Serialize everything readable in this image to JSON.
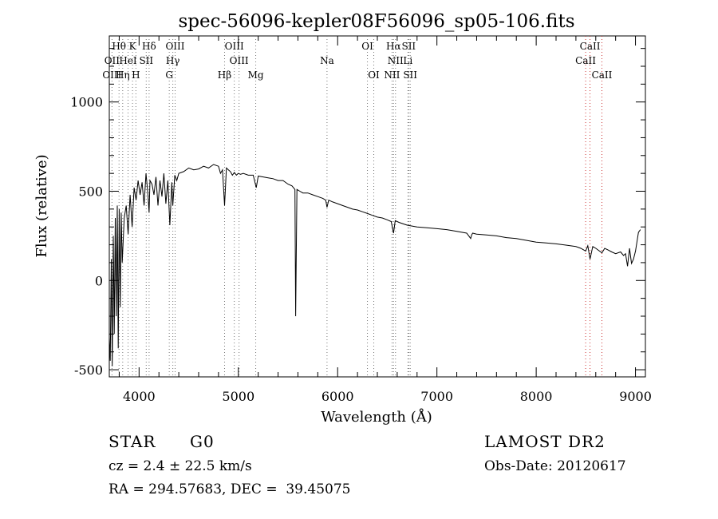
{
  "chart_data": {
    "type": "line",
    "title": "spec-56096-kepler08F56096_sp05-106.fits",
    "xlabel": "Wavelength (Å)",
    "ylabel": "Flux (relative)",
    "xlim": [
      3700,
      9100
    ],
    "ylim": [
      -540,
      1370
    ],
    "x_ticks": [
      4000,
      5000,
      6000,
      7000,
      8000,
      9000
    ],
    "y_ticks": [
      -500,
      0,
      500,
      1000
    ],
    "grid": false,
    "series": [
      {
        "name": "flux",
        "x": [
          3700,
          3710,
          3720,
          3730,
          3740,
          3750,
          3760,
          3770,
          3780,
          3790,
          3800,
          3810,
          3820,
          3830,
          3850,
          3870,
          3890,
          3910,
          3930,
          3950,
          3970,
          3990,
          4010,
          4030,
          4050,
          4070,
          4090,
          4101,
          4110,
          4130,
          4150,
          4170,
          4190,
          4210,
          4230,
          4250,
          4270,
          4290,
          4310,
          4330,
          4340,
          4360,
          4380,
          4400,
          4450,
          4500,
          4550,
          4600,
          4650,
          4700,
          4750,
          4800,
          4820,
          4840,
          4861,
          4880,
          4900,
          4920,
          4940,
          4960,
          4980,
          5000,
          5020,
          5050,
          5100,
          5150,
          5180,
          5200,
          5250,
          5300,
          5350,
          5400,
          5450,
          5500,
          5540,
          5570,
          5577,
          5590,
          5620,
          5650,
          5700,
          5750,
          5800,
          5850,
          5880,
          5893,
          5910,
          5950,
          6000,
          6050,
          6100,
          6150,
          6200,
          6250,
          6300,
          6350,
          6400,
          6450,
          6500,
          6540,
          6563,
          6580,
          6620,
          6700,
          6800,
          6900,
          7000,
          7100,
          7200,
          7300,
          7340,
          7350,
          7360,
          7400,
          7500,
          7600,
          7700,
          7800,
          7900,
          8000,
          8100,
          8200,
          8300,
          8400,
          8450,
          8498,
          8520,
          8542,
          8570,
          8600,
          8662,
          8690,
          8720,
          8760,
          8800,
          8850,
          8880,
          8900,
          8920,
          8940,
          8960,
          8980,
          9000,
          9030,
          9050
        ],
        "values": [
          -320,
          -450,
          120,
          -480,
          250,
          -300,
          350,
          -200,
          420,
          -380,
          400,
          -150,
          380,
          100,
          350,
          420,
          260,
          480,
          300,
          520,
          450,
          560,
          480,
          550,
          420,
          600,
          480,
          380,
          560,
          540,
          480,
          580,
          420,
          560,
          470,
          600,
          430,
          560,
          310,
          550,
          420,
          590,
          560,
          600,
          610,
          630,
          620,
          625,
          640,
          630,
          650,
          640,
          600,
          620,
          420,
          630,
          620,
          610,
          590,
          605,
          590,
          600,
          595,
          600,
          590,
          590,
          520,
          585,
          580,
          575,
          570,
          560,
          560,
          540,
          530,
          510,
          -200,
          510,
          500,
          490,
          490,
          480,
          470,
          460,
          450,
          410,
          450,
          440,
          430,
          420,
          410,
          400,
          395,
          385,
          375,
          365,
          355,
          350,
          340,
          330,
          265,
          335,
          325,
          310,
          300,
          295,
          290,
          285,
          275,
          265,
          235,
          255,
          265,
          260,
          255,
          250,
          240,
          235,
          225,
          215,
          210,
          205,
          198,
          190,
          180,
          165,
          195,
          120,
          190,
          180,
          155,
          180,
          172,
          160,
          150,
          160,
          140,
          150,
          80,
          180,
          95,
          120,
          165,
          270,
          285
        ]
      }
    ],
    "annotations": [
      {
        "label": "Hθ",
        "x": 3798,
        "row": 0
      },
      {
        "label": "K",
        "x": 3934,
        "row": 0
      },
      {
        "label": "Hδ",
        "x": 4101,
        "row": 0
      },
      {
        "label": "OIII",
        "x": 4363,
        "row": 0
      },
      {
        "label": "OIII",
        "x": 4959,
        "row": 0
      },
      {
        "label": "OI",
        "x": 6300,
        "row": 0
      },
      {
        "label": "Hα",
        "x": 6563,
        "row": 0
      },
      {
        "label": "SII",
        "x": 6716,
        "row": 0
      },
      {
        "label": "CaII",
        "x": 8542,
        "row": 0
      },
      {
        "label": "OII",
        "x": 3727,
        "row": 1
      },
      {
        "label": "HeI",
        "x": 3889,
        "row": 1
      },
      {
        "label": "SII",
        "x": 4072,
        "row": 1
      },
      {
        "label": "Hγ",
        "x": 4340,
        "row": 1
      },
      {
        "label": "OIII",
        "x": 5007,
        "row": 1
      },
      {
        "label": "Na",
        "x": 5893,
        "row": 1
      },
      {
        "label": "NII",
        "x": 6583,
        "row": 1
      },
      {
        "label": "Li",
        "x": 6708,
        "row": 1
      },
      {
        "label": "CaII",
        "x": 8498,
        "row": 1
      },
      {
        "label": "OIII",
        "x": 3727,
        "row": 2
      },
      {
        "label": "Hη",
        "x": 3835,
        "row": 2
      },
      {
        "label": "H",
        "x": 3968,
        "row": 2
      },
      {
        "label": "G",
        "x": 4304,
        "row": 2
      },
      {
        "label": "Hβ",
        "x": 4861,
        "row": 2
      },
      {
        "label": "Mg",
        "x": 5175,
        "row": 2
      },
      {
        "label": "OI",
        "x": 6364,
        "row": 2
      },
      {
        "label": "NII",
        "x": 6548,
        "row": 2
      },
      {
        "label": "SII",
        "x": 6731,
        "row": 2
      },
      {
        "label": "CaII",
        "x": 8662,
        "row": 2
      }
    ],
    "line_markers": [
      3727,
      3798,
      3835,
      3889,
      3934,
      3968,
      4072,
      4101,
      4304,
      4340,
      4363,
      4861,
      4959,
      5007,
      5175,
      5893,
      6300,
      6364,
      6548,
      6563,
      6583,
      6708,
      6716,
      6731,
      8498,
      8542,
      8662
    ],
    "marker_colors": {
      "dotted_line": "#777777",
      "red_dotted_line": "#cc3333"
    }
  },
  "info": {
    "class_label": "STAR",
    "subclass": "G0",
    "survey": "LAMOST DR2",
    "redshift": "cz = 2.4 ± 22.5 km/s",
    "obs_date": "Obs-Date: 20120617",
    "coords": "RA = 294.57683, DEC =  39.45075"
  }
}
